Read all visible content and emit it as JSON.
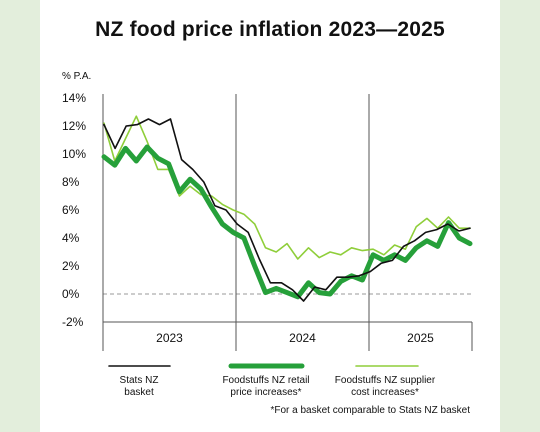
{
  "title": "NZ food price inflation 2023—2025",
  "footnote": "*For a basket comparable to Stats NZ basket",
  "chart_data": {
    "type": "line",
    "title": "NZ food price inflation 2023—2025",
    "ylabel": "% P.A.",
    "xlabel": "",
    "ylim": [
      -2,
      14
    ],
    "yticks": [
      -2,
      0,
      2,
      4,
      6,
      8,
      10,
      12,
      14
    ],
    "ytick_labels": [
      "-2%",
      "0%",
      "2%",
      "4%",
      "6%",
      "8%",
      "10%",
      "12%",
      "14%"
    ],
    "xgroups": [
      "2023",
      "2024",
      "2025"
    ],
    "zero_line": "dashed",
    "legend_position": "bottom",
    "series": [
      {
        "name": "Stats NZ basket",
        "color": "#111111",
        "values": [
          12.1,
          10.4,
          12.0,
          12.1,
          12.5,
          12.1,
          12.5,
          9.6,
          8.9,
          8.0,
          6.3,
          6.0,
          5.0,
          4.4,
          2.5,
          0.8,
          0.8,
          0.3,
          -0.5,
          0.5,
          0.3,
          1.2,
          1.2,
          1.3,
          1.6,
          2.2,
          2.4,
          3.4,
          3.8,
          4.4,
          4.6,
          5.0,
          4.5,
          4.7
        ]
      },
      {
        "name": "Foodstuffs NZ retail price increases*",
        "color": "#26a03a",
        "values": [
          9.8,
          9.2,
          10.4,
          9.5,
          10.5,
          9.7,
          9.3,
          7.3,
          8.2,
          7.5,
          6.2,
          5.0,
          4.4,
          4.0,
          2.0,
          0.1,
          0.4,
          0.1,
          -0.2,
          0.8,
          0.1,
          0.0,
          0.9,
          1.3,
          1.0,
          2.8,
          2.4,
          2.8,
          2.4,
          3.3,
          3.8,
          3.4,
          5.1,
          4.0,
          3.6
        ]
      },
      {
        "name": "Foodstuffs NZ supplier cost increases*",
        "color": "#8fce3a",
        "values": [
          12.2,
          9.5,
          11.1,
          12.7,
          10.9,
          8.9,
          8.9,
          7.0,
          7.7,
          7.1,
          7.0,
          6.4,
          6.0,
          5.7,
          5.0,
          3.3,
          3.0,
          3.6,
          2.5,
          3.3,
          2.6,
          3.0,
          2.8,
          3.3,
          3.1,
          3.2,
          2.8,
          3.5,
          3.2,
          4.8,
          5.4,
          4.7,
          5.5,
          4.7,
          4.7
        ]
      }
    ]
  }
}
